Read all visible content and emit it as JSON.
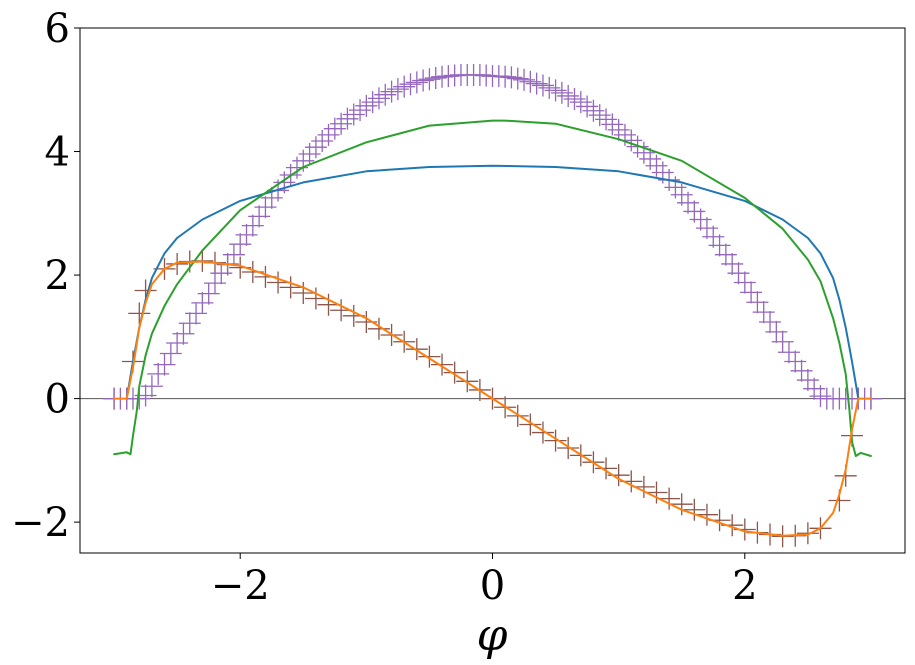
{
  "chart_data": {
    "type": "line",
    "title": "",
    "xlabel": "φ",
    "ylabel": "",
    "xlim": [
      -3.27,
      3.27
    ],
    "ylim": [
      -2.5,
      6
    ],
    "xticks": [
      -2,
      0,
      2
    ],
    "xtick_labels": [
      "−2",
      "0",
      "2"
    ],
    "yticks": [
      -2,
      0,
      2,
      4,
      6
    ],
    "ytick_labels": [
      "−2",
      "0",
      "2",
      "4",
      "6"
    ],
    "grid": false,
    "legend": "none",
    "reference_line": {
      "y": 0,
      "color": "#555555"
    },
    "series": [
      {
        "kind": "line",
        "color": "#1f77b4",
        "x": [
          -2.9,
          -2.85,
          -2.8,
          -2.75,
          -2.7,
          -2.6,
          -2.5,
          -2.3,
          -2.0,
          -1.5,
          -1.0,
          -0.5,
          0.0,
          0.5,
          1.0,
          1.5,
          2.0,
          2.3,
          2.5,
          2.6,
          2.7,
          2.75,
          2.8,
          2.85,
          2.9
        ],
        "y": [
          0.0,
          0.6,
          1.15,
          1.6,
          1.95,
          2.35,
          2.6,
          2.9,
          3.2,
          3.5,
          3.68,
          3.75,
          3.77,
          3.75,
          3.68,
          3.5,
          3.2,
          2.9,
          2.6,
          2.35,
          1.95,
          1.6,
          1.15,
          0.6,
          0.0
        ]
      },
      {
        "kind": "line",
        "color": "#2ca02c",
        "x": [
          -3.0,
          -2.9,
          -2.87,
          -2.85,
          -2.82,
          -2.8,
          -2.75,
          -2.7,
          -2.6,
          -2.5,
          -2.3,
          -2.0,
          -1.5,
          -1.0,
          -0.5,
          0.0,
          0.1,
          0.5,
          1.0,
          1.5,
          2.0,
          2.3,
          2.5,
          2.6,
          2.7,
          2.75,
          2.8,
          2.83,
          2.85,
          2.88,
          2.92,
          3.0
        ],
        "y": [
          -0.9,
          -0.87,
          -0.9,
          -0.6,
          -0.2,
          0.2,
          0.7,
          1.05,
          1.5,
          1.85,
          2.4,
          3.05,
          3.75,
          4.15,
          4.42,
          4.5,
          4.5,
          4.45,
          4.2,
          3.85,
          3.25,
          2.75,
          2.25,
          1.9,
          1.3,
          0.9,
          0.4,
          -0.2,
          -0.7,
          -0.93,
          -0.88,
          -0.93
        ]
      },
      {
        "kind": "line",
        "color": "#ff7f0e",
        "x": [
          -3.0,
          -2.9,
          -2.85,
          -2.8,
          -2.75,
          -2.7,
          -2.6,
          -2.5,
          -2.3,
          -2.0,
          -1.5,
          -1.0,
          -0.5,
          0.0,
          0.5,
          1.0,
          1.5,
          2.0,
          2.3,
          2.5,
          2.6,
          2.7,
          2.75,
          2.8,
          2.85,
          2.9,
          3.0
        ],
        "y": [
          0.0,
          0.0,
          0.5,
          1.15,
          1.55,
          1.85,
          2.1,
          2.2,
          2.22,
          2.15,
          1.8,
          1.3,
          0.65,
          0.0,
          -0.65,
          -1.3,
          -1.8,
          -2.15,
          -2.22,
          -2.2,
          -2.1,
          -1.85,
          -1.55,
          -1.15,
          -0.5,
          0.0,
          0.0
        ]
      },
      {
        "kind": "markers",
        "marker": "+",
        "color": "#8c564b",
        "x": [
          -3.0,
          -2.9,
          -2.85,
          -2.8,
          -2.75,
          -2.6,
          -2.5,
          -2.4,
          -2.3,
          -2.2,
          -2.1,
          -2.0,
          -1.9,
          -1.8,
          -1.7,
          -1.6,
          -1.5,
          -1.4,
          -1.3,
          -1.2,
          -1.1,
          -1.0,
          -0.9,
          -0.8,
          -0.7,
          -0.6,
          -0.5,
          -0.4,
          -0.3,
          -0.2,
          -0.1,
          0.0,
          0.1,
          0.2,
          0.3,
          0.4,
          0.5,
          0.6,
          0.7,
          0.8,
          0.9,
          1.0,
          1.1,
          1.2,
          1.3,
          1.4,
          1.5,
          1.6,
          1.7,
          1.8,
          1.9,
          2.0,
          2.1,
          2.2,
          2.3,
          2.4,
          2.5,
          2.6,
          2.75,
          2.8,
          2.85,
          2.9,
          3.0
        ],
        "y": [
          0.0,
          0.0,
          0.6,
          1.38,
          1.75,
          2.1,
          2.18,
          2.22,
          2.23,
          2.2,
          2.17,
          2.12,
          2.05,
          1.97,
          1.88,
          1.8,
          1.71,
          1.62,
          1.52,
          1.43,
          1.34,
          1.24,
          1.13,
          1.03,
          0.92,
          0.8,
          0.68,
          0.55,
          0.42,
          0.28,
          0.14,
          0.0,
          -0.14,
          -0.28,
          -0.42,
          -0.55,
          -0.68,
          -0.8,
          -0.92,
          -1.03,
          -1.13,
          -1.24,
          -1.34,
          -1.43,
          -1.52,
          -1.62,
          -1.71,
          -1.8,
          -1.88,
          -1.97,
          -2.05,
          -2.12,
          -2.17,
          -2.2,
          -2.23,
          -2.22,
          -2.18,
          -2.1,
          -1.65,
          -1.25,
          -0.6,
          0.0,
          0.0
        ]
      },
      {
        "kind": "markers",
        "marker": "+",
        "color": "#9467bd",
        "x": [
          -3.0,
          -2.95,
          -2.9,
          -2.85,
          -2.8,
          -2.75,
          -2.7,
          -2.65,
          -2.6,
          -2.55,
          -2.5,
          -2.45,
          -2.4,
          -2.35,
          -2.3,
          -2.25,
          -2.2,
          -2.15,
          -2.1,
          -2.05,
          -2.0,
          -1.95,
          -1.9,
          -1.85,
          -1.8,
          -1.75,
          -1.7,
          -1.65,
          -1.6,
          -1.55,
          -1.5,
          -1.45,
          -1.4,
          -1.35,
          -1.3,
          -1.25,
          -1.2,
          -1.15,
          -1.1,
          -1.05,
          -1.0,
          -0.95,
          -0.9,
          -0.85,
          -0.8,
          -0.75,
          -0.7,
          -0.65,
          -0.6,
          -0.55,
          -0.5,
          -0.45,
          -0.4,
          -0.35,
          -0.3,
          -0.25,
          -0.2,
          -0.15,
          -0.1,
          -0.05,
          0.0,
          0.05,
          0.1,
          0.15,
          0.2,
          0.25,
          0.3,
          0.35,
          0.4,
          0.45,
          0.5,
          0.55,
          0.6,
          0.65,
          0.7,
          0.75,
          0.8,
          0.85,
          0.9,
          0.95,
          1.0,
          1.05,
          1.1,
          1.15,
          1.2,
          1.25,
          1.3,
          1.35,
          1.4,
          1.45,
          1.5,
          1.55,
          1.6,
          1.65,
          1.7,
          1.75,
          1.8,
          1.85,
          1.9,
          1.95,
          2.0,
          2.05,
          2.1,
          2.15,
          2.2,
          2.25,
          2.3,
          2.35,
          2.4,
          2.45,
          2.5,
          2.55,
          2.6,
          2.65,
          2.7,
          2.75,
          2.8,
          2.85,
          2.9,
          2.95,
          3.0
        ],
        "y": [
          0.0,
          0.0,
          0.0,
          0.0,
          0.0,
          0.05,
          0.2,
          0.4,
          0.55,
          0.73,
          0.9,
          1.05,
          1.22,
          1.38,
          1.55,
          1.7,
          1.87,
          2.03,
          2.18,
          2.33,
          2.5,
          2.65,
          2.8,
          2.95,
          3.1,
          3.25,
          3.37,
          3.5,
          3.62,
          3.74,
          3.85,
          3.96,
          4.07,
          4.17,
          4.27,
          4.37,
          4.45,
          4.53,
          4.6,
          4.67,
          4.74,
          4.8,
          4.86,
          4.92,
          4.97,
          5.01,
          5.05,
          5.09,
          5.12,
          5.15,
          5.17,
          5.19,
          5.21,
          5.22,
          5.23,
          5.24,
          5.24,
          5.24,
          5.24,
          5.23,
          5.22,
          5.22,
          5.21,
          5.2,
          5.18,
          5.16,
          5.13,
          5.1,
          5.07,
          5.03,
          4.99,
          4.95,
          4.9,
          4.85,
          4.8,
          4.73,
          4.66,
          4.59,
          4.52,
          4.44,
          4.35,
          4.27,
          4.18,
          4.08,
          3.98,
          3.88,
          3.77,
          3.66,
          3.54,
          3.42,
          3.3,
          3.17,
          3.03,
          2.9,
          2.76,
          2.62,
          2.48,
          2.33,
          2.18,
          2.03,
          1.88,
          1.72,
          1.56,
          1.4,
          1.24,
          1.08,
          0.92,
          0.75,
          0.6,
          0.45,
          0.3,
          0.16,
          0.04,
          0.0,
          0.0,
          0.0,
          0.0,
          0.0,
          0.0,
          0.0,
          0.0
        ]
      }
    ]
  }
}
